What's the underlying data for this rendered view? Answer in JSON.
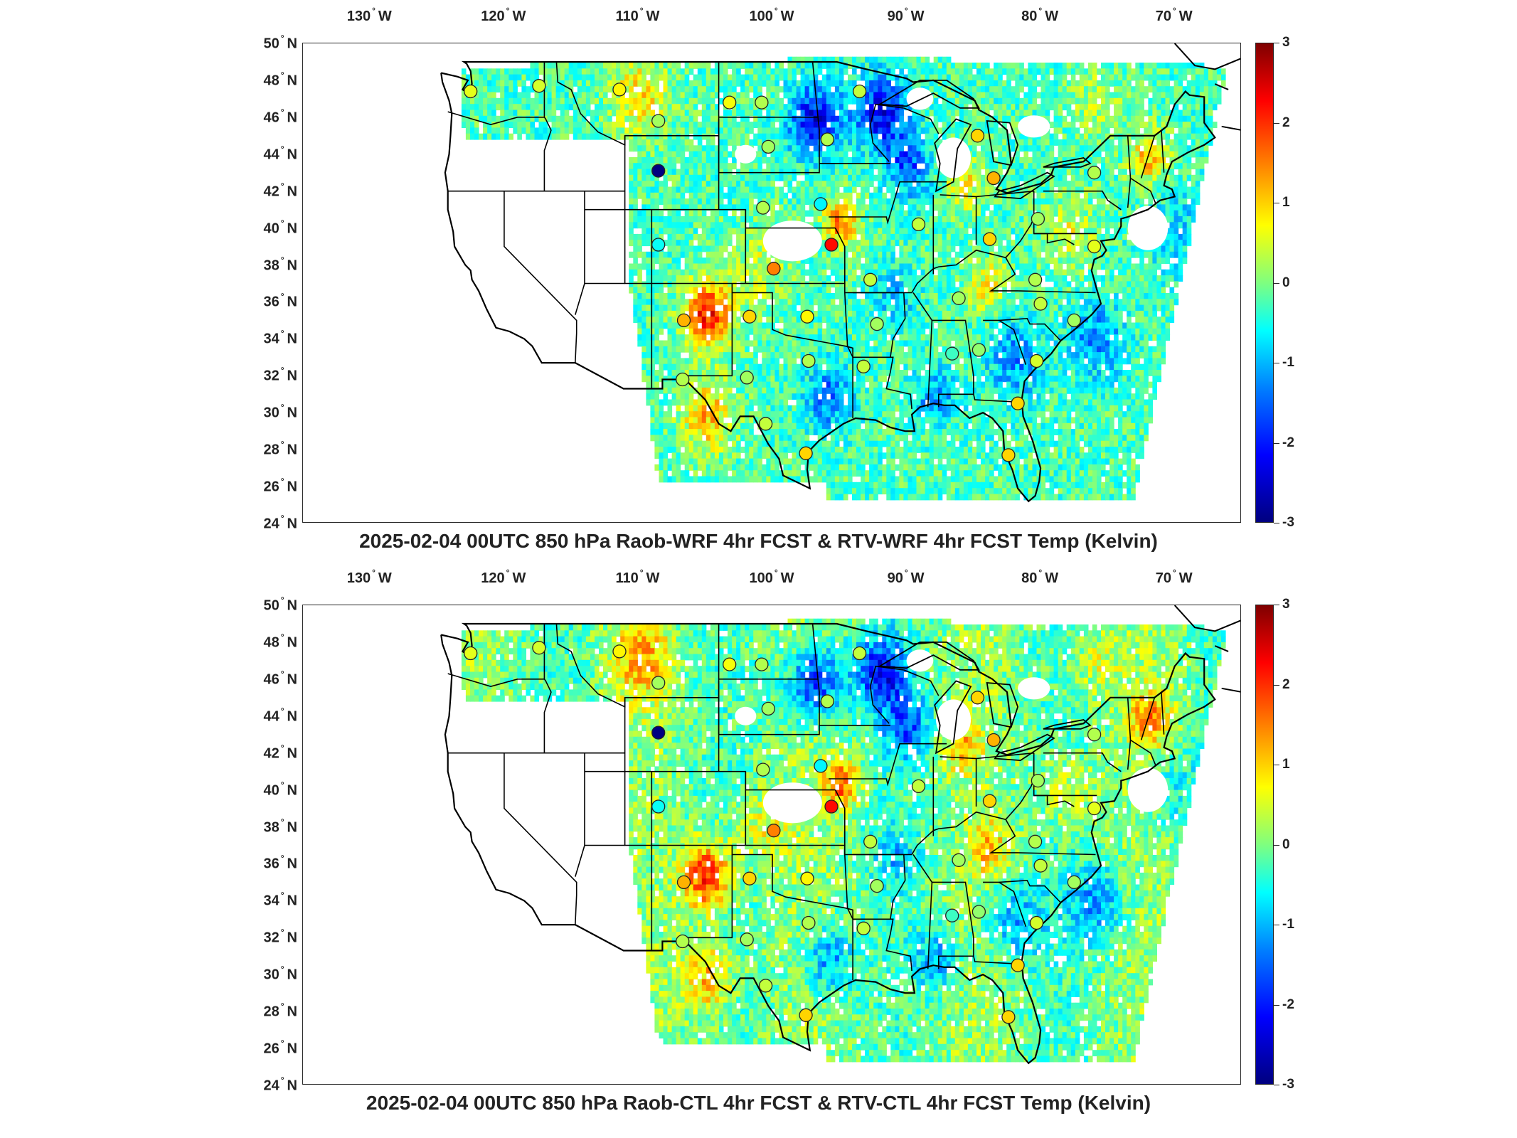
{
  "panels": [
    {
      "title": "2025-02-04 00UTC 850 hPa Raob-WRF 4hr FCST & RTV-WRF 4hr FCST Temp (Kelvin)",
      "variant": "wrf"
    },
    {
      "title": "2025-02-04 00UTC 850 hPa Raob-CTL 4hr FCST & RTV-CTL 4hr FCST Temp (Kelvin)",
      "variant": "ctl"
    }
  ],
  "lon_labels": [
    {
      "num": "130",
      "hem": "W"
    },
    {
      "num": "120",
      "hem": "W"
    },
    {
      "num": "110",
      "hem": "W"
    },
    {
      "num": "100",
      "hem": "W"
    },
    {
      "num": "90",
      "hem": "W"
    },
    {
      "num": "80",
      "hem": "W"
    },
    {
      "num": "70",
      "hem": "W"
    }
  ],
  "lat_labels": [
    {
      "num": "50",
      "hem": "N"
    },
    {
      "num": "48",
      "hem": "N"
    },
    {
      "num": "46",
      "hem": "N"
    },
    {
      "num": "44",
      "hem": "N"
    },
    {
      "num": "42",
      "hem": "N"
    },
    {
      "num": "40",
      "hem": "N"
    },
    {
      "num": "38",
      "hem": "N"
    },
    {
      "num": "36",
      "hem": "N"
    },
    {
      "num": "34",
      "hem": "N"
    },
    {
      "num": "32",
      "hem": "N"
    },
    {
      "num": "30",
      "hem": "N"
    },
    {
      "num": "28",
      "hem": "N"
    },
    {
      "num": "26",
      "hem": "N"
    },
    {
      "num": "24",
      "hem": "N"
    }
  ],
  "colorbar": {
    "ticks": [
      "3",
      "2",
      "1",
      "0",
      "-1",
      "-2",
      "-3"
    ],
    "min": -3,
    "max": 3,
    "colormap": "jet"
  },
  "raob_stations": [
    {
      "lon": -122.5,
      "lat": 47.4,
      "value": 0.6
    },
    {
      "lon": -117.4,
      "lat": 47.7,
      "value": 0.5
    },
    {
      "lon": -111.4,
      "lat": 47.5,
      "value": 0.8
    },
    {
      "lon": -108.5,
      "lat": 45.8,
      "value": 0.2
    },
    {
      "lon": -103.2,
      "lat": 46.8,
      "value": 0.7
    },
    {
      "lon": -100.8,
      "lat": 46.8,
      "value": 0.3
    },
    {
      "lon": -93.5,
      "lat": 47.4,
      "value": 0.4
    },
    {
      "lon": -95.9,
      "lat": 44.8,
      "value": 0.3
    },
    {
      "lon": -108.5,
      "lat": 43.1,
      "value": -3.0
    },
    {
      "lon": -100.3,
      "lat": 44.4,
      "value": 0.2
    },
    {
      "lon": -100.7,
      "lat": 41.1,
      "value": 0.3
    },
    {
      "lon": -96.4,
      "lat": 41.3,
      "value": -0.8
    },
    {
      "lon": -108.5,
      "lat": 39.1,
      "value": -0.7
    },
    {
      "lon": -95.6,
      "lat": 39.1,
      "value": 2.2
    },
    {
      "lon": -99.9,
      "lat": 37.8,
      "value": 1.5
    },
    {
      "lon": -97.4,
      "lat": 35.2,
      "value": 0.8
    },
    {
      "lon": -106.6,
      "lat": 35.0,
      "value": 1.2
    },
    {
      "lon": -101.7,
      "lat": 35.2,
      "value": 1.0
    },
    {
      "lon": -97.3,
      "lat": 32.8,
      "value": 0.3
    },
    {
      "lon": -101.9,
      "lat": 31.9,
      "value": 0.2
    },
    {
      "lon": -106.7,
      "lat": 31.8,
      "value": 0.3
    },
    {
      "lon": -100.5,
      "lat": 29.4,
      "value": 0.4
    },
    {
      "lon": -97.5,
      "lat": 27.8,
      "value": 1.0
    },
    {
      "lon": -93.2,
      "lat": 32.5,
      "value": 0.4
    },
    {
      "lon": -92.2,
      "lat": 34.8,
      "value": 0.2
    },
    {
      "lon": -92.7,
      "lat": 37.2,
      "value": 0.4
    },
    {
      "lon": -89.1,
      "lat": 40.2,
      "value": 0.4
    },
    {
      "lon": -86.1,
      "lat": 36.2,
      "value": 0.2
    },
    {
      "lon": -86.6,
      "lat": 33.2,
      "value": -0.4
    },
    {
      "lon": -84.6,
      "lat": 33.4,
      "value": 0.1
    },
    {
      "lon": -83.8,
      "lat": 39.4,
      "value": 1.0
    },
    {
      "lon": -83.5,
      "lat": 42.7,
      "value": 1.2
    },
    {
      "lon": -84.7,
      "lat": 45.0,
      "value": 1.0
    },
    {
      "lon": -80.2,
      "lat": 40.5,
      "value": 0.2
    },
    {
      "lon": -80.4,
      "lat": 37.2,
      "value": 0.3
    },
    {
      "lon": -80.0,
      "lat": 35.9,
      "value": 0.4
    },
    {
      "lon": -80.3,
      "lat": 32.8,
      "value": 0.5
    },
    {
      "lon": -81.7,
      "lat": 30.5,
      "value": 1.0
    },
    {
      "lon": -82.4,
      "lat": 27.7,
      "value": 1.0
    },
    {
      "lon": -77.5,
      "lat": 35.0,
      "value": 0.2
    },
    {
      "lon": -76.0,
      "lat": 39.0,
      "value": 0.6
    },
    {
      "lon": -76.0,
      "lat": 43.0,
      "value": 0.3
    }
  ]
}
